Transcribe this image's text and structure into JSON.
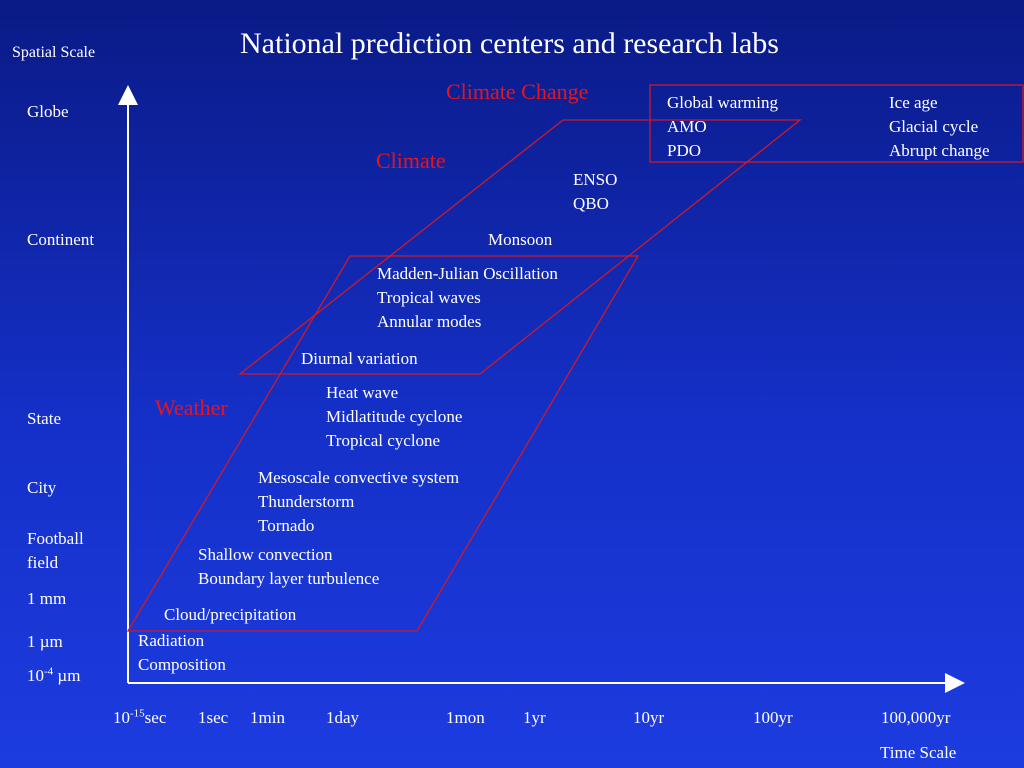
{
  "title": "National prediction centers and research labs",
  "axes": {
    "y_label": "Spatial Scale",
    "x_label": "Time Scale",
    "y_ticks": {
      "globe": "Globe",
      "continent": "Continent",
      "state": "State",
      "city": "City",
      "football_1": "Football",
      "football_2": "field",
      "mm": "1 mm",
      "um": "1 µm",
      "tiny_base": "10",
      "tiny_exp": "-4",
      "tiny_unit": " µm"
    },
    "x_ticks": {
      "sec_base": "10",
      "sec_exp": "-15",
      "sec_unit": "sec",
      "t1sec": "1sec",
      "t1min": "1min",
      "t1day": "1day",
      "t1mon": "1mon",
      "t1yr": "1yr",
      "t10yr": "10yr",
      "t100yr": "100yr",
      "t100000yr": "100,000yr"
    }
  },
  "regions": {
    "climate_change": "Climate Change",
    "climate": "Climate",
    "weather": "Weather"
  },
  "phenomena": {
    "climate_change_col1": [
      "Global warming",
      "AMO",
      "PDO"
    ],
    "climate_change_col2": [
      "Ice age",
      "Glacial cycle",
      "Abrupt change"
    ],
    "enso_qbo": [
      "ENSO",
      "QBO"
    ],
    "monsoon": "Monsoon",
    "mjo_group": [
      "Madden-Julian Oscillation",
      "Tropical waves",
      "Annular modes"
    ],
    "diurnal": "Diurnal variation",
    "synoptic": [
      "Heat wave",
      "Midlatitude cyclone",
      "Tropical cyclone"
    ],
    "mesoscale": [
      "Mesoscale convective system",
      "Thunderstorm",
      "Tornado"
    ],
    "boundary": [
      "Shallow convection",
      "Boundary layer turbulence"
    ],
    "cloud": "Cloud/precipitation",
    "micro": [
      "Radiation",
      "Composition"
    ]
  },
  "colors": {
    "region_label": "#e8141c",
    "region_outline": "#cc1a2a",
    "axis": "#ffffff"
  }
}
